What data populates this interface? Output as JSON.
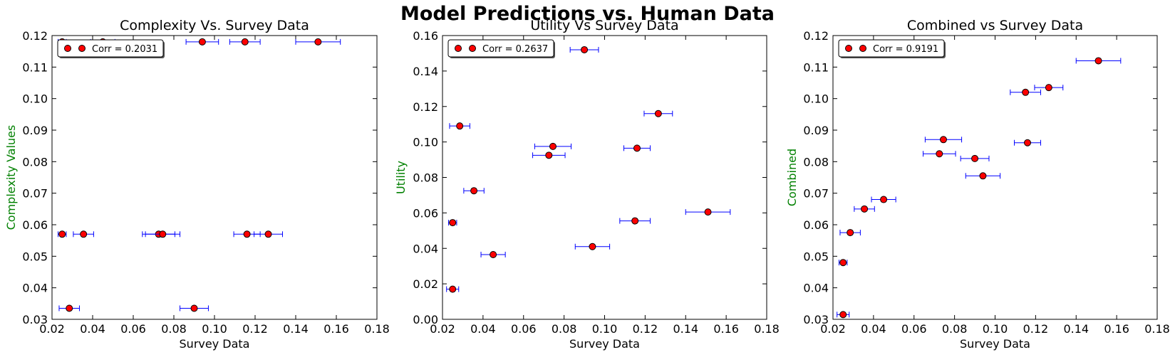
{
  "figure": {
    "suptitle": "Model Predictions vs. Human Data",
    "colors": {
      "marker_fill": "#ff0000",
      "marker_edge": "#000000",
      "errorbar": "#0000ff",
      "ylabel": "#008000"
    }
  },
  "chart_data": [
    {
      "type": "scatter",
      "title": "Complexity Vs. Survey Data",
      "xlabel": "Survey Data",
      "ylabel": "Complexity Values",
      "xlim": [
        0.02,
        0.18
      ],
      "ylim": [
        0.03,
        0.12
      ],
      "xticks": [
        0.02,
        0.04,
        0.06,
        0.08,
        0.1,
        0.12,
        0.14,
        0.16,
        0.18
      ],
      "yticks": [
        0.03,
        0.04,
        0.05,
        0.06,
        0.07,
        0.08,
        0.09,
        0.1,
        0.11,
        0.12
      ],
      "xtick_labels": [
        "0.02",
        "0.04",
        "0.06",
        "0.08",
        "0.10",
        "0.12",
        "0.14",
        "0.16",
        "0.18"
      ],
      "ytick_labels": [
        "0.03",
        "0.04",
        "0.05",
        "0.06",
        "0.07",
        "0.08",
        "0.09",
        "0.10",
        "0.11",
        "0.12"
      ],
      "legend": {
        "label": "Corr = 0.2031",
        "placement": "upper left"
      },
      "points": [
        {
          "x": 0.025,
          "y": 0.118,
          "xerr": 0.002
        },
        {
          "x": 0.045,
          "y": 0.118,
          "xerr": 0.006
        },
        {
          "x": 0.094,
          "y": 0.118,
          "xerr": 0.008
        },
        {
          "x": 0.115,
          "y": 0.118,
          "xerr": 0.0075
        },
        {
          "x": 0.151,
          "y": 0.118,
          "xerr": 0.011
        },
        {
          "x": 0.025,
          "y": 0.057,
          "xerr": 0.002
        },
        {
          "x": 0.0355,
          "y": 0.057,
          "xerr": 0.005
        },
        {
          "x": 0.0725,
          "y": 0.057,
          "xerr": 0.008
        },
        {
          "x": 0.0745,
          "y": 0.057,
          "xerr": 0.0085
        },
        {
          "x": 0.116,
          "y": 0.057,
          "xerr": 0.0065
        },
        {
          "x": 0.1265,
          "y": 0.057,
          "xerr": 0.007
        },
        {
          "x": 0.0285,
          "y": 0.0335,
          "xerr": 0.005
        },
        {
          "x": 0.09,
          "y": 0.0335,
          "xerr": 0.007
        }
      ]
    },
    {
      "type": "scatter",
      "title": "Utility Vs Survey Data",
      "xlabel": "Survey Data",
      "ylabel": "Utility",
      "xlim": [
        0.02,
        0.18
      ],
      "ylim": [
        0.0,
        0.16
      ],
      "xticks": [
        0.02,
        0.04,
        0.06,
        0.08,
        0.1,
        0.12,
        0.14,
        0.16,
        0.18
      ],
      "yticks": [
        0.0,
        0.02,
        0.04,
        0.06,
        0.08,
        0.1,
        0.12,
        0.14,
        0.16
      ],
      "xtick_labels": [
        "0.02",
        "0.04",
        "0.06",
        "0.08",
        "0.10",
        "0.12",
        "0.14",
        "0.16",
        "0.18"
      ],
      "ytick_labels": [
        "0.00",
        "0.02",
        "0.04",
        "0.06",
        "0.08",
        "0.10",
        "0.12",
        "0.14",
        "0.16"
      ],
      "legend": {
        "label": "Corr = 0.2637",
        "placement": "upper left"
      },
      "points": [
        {
          "x": 0.09,
          "y": 0.152,
          "xerr": 0.007
        },
        {
          "x": 0.0285,
          "y": 0.109,
          "xerr": 0.005
        },
        {
          "x": 0.1265,
          "y": 0.116,
          "xerr": 0.007
        },
        {
          "x": 0.0745,
          "y": 0.0975,
          "xerr": 0.009
        },
        {
          "x": 0.0725,
          "y": 0.0925,
          "xerr": 0.008
        },
        {
          "x": 0.116,
          "y": 0.0965,
          "xerr": 0.0065
        },
        {
          "x": 0.0355,
          "y": 0.0725,
          "xerr": 0.005
        },
        {
          "x": 0.025,
          "y": 0.0545,
          "xerr": 0.002
        },
        {
          "x": 0.115,
          "y": 0.0555,
          "xerr": 0.0075
        },
        {
          "x": 0.151,
          "y": 0.0605,
          "xerr": 0.011
        },
        {
          "x": 0.094,
          "y": 0.041,
          "xerr": 0.0085
        },
        {
          "x": 0.045,
          "y": 0.0365,
          "xerr": 0.006
        },
        {
          "x": 0.025,
          "y": 0.017,
          "xerr": 0.003
        }
      ]
    },
    {
      "type": "scatter",
      "title": "Combined vs Survey Data",
      "xlabel": "Survey Data",
      "ylabel": "Combined",
      "xlim": [
        0.02,
        0.18
      ],
      "ylim": [
        0.03,
        0.12
      ],
      "xticks": [
        0.02,
        0.04,
        0.06,
        0.08,
        0.1,
        0.12,
        0.14,
        0.16,
        0.18
      ],
      "yticks": [
        0.03,
        0.04,
        0.05,
        0.06,
        0.07,
        0.08,
        0.09,
        0.1,
        0.11,
        0.12
      ],
      "xtick_labels": [
        "0.02",
        "0.04",
        "0.06",
        "0.08",
        "0.10",
        "0.12",
        "0.14",
        "0.16",
        "0.18"
      ],
      "ytick_labels": [
        "0.03",
        "0.04",
        "0.05",
        "0.06",
        "0.07",
        "0.08",
        "0.09",
        "0.10",
        "0.11",
        "0.12"
      ],
      "legend": {
        "label": "Corr = 0.9191",
        "placement": "upper left"
      },
      "points": [
        {
          "x": 0.151,
          "y": 0.112,
          "xerr": 0.011
        },
        {
          "x": 0.1265,
          "y": 0.1035,
          "xerr": 0.007
        },
        {
          "x": 0.115,
          "y": 0.102,
          "xerr": 0.0075
        },
        {
          "x": 0.0745,
          "y": 0.087,
          "xerr": 0.009
        },
        {
          "x": 0.116,
          "y": 0.086,
          "xerr": 0.0065
        },
        {
          "x": 0.0725,
          "y": 0.0825,
          "xerr": 0.008
        },
        {
          "x": 0.09,
          "y": 0.081,
          "xerr": 0.007
        },
        {
          "x": 0.094,
          "y": 0.0755,
          "xerr": 0.0085
        },
        {
          "x": 0.045,
          "y": 0.068,
          "xerr": 0.006
        },
        {
          "x": 0.0355,
          "y": 0.065,
          "xerr": 0.005
        },
        {
          "x": 0.0285,
          "y": 0.0575,
          "xerr": 0.005
        },
        {
          "x": 0.025,
          "y": 0.048,
          "xerr": 0.002
        },
        {
          "x": 0.025,
          "y": 0.0315,
          "xerr": 0.003
        }
      ]
    }
  ]
}
